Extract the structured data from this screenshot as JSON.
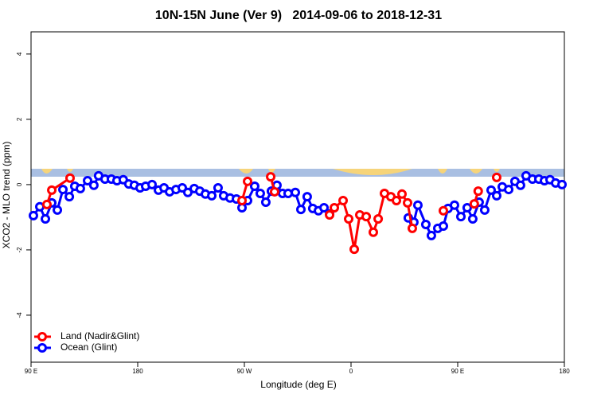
{
  "chart_data": {
    "type": "line",
    "title": "10N-15N June (Ver 9)   2014-09-06 to 2018-12-31",
    "x_label": "Longitude (deg E)",
    "y_label": "XCO2 - MLO trend (ppm)",
    "xlim": [
      90,
      540
    ],
    "xticks": [
      {
        "value": 90,
        "label": "90 E"
      },
      {
        "value": 180,
        "label": "180"
      },
      {
        "value": 270,
        "label": "90 W"
      },
      {
        "value": 360,
        "label": "0"
      },
      {
        "value": 450,
        "label": "90 E"
      },
      {
        "value": 540,
        "label": "180"
      }
    ],
    "ylim": [
      -5.44,
      4.68
    ],
    "yticks": [
      -4,
      -2,
      0,
      2,
      4
    ],
    "legend": "bottom-left",
    "series": [
      {
        "name": "Land (Nadir&Glint)",
        "color": "#ff0000",
        "x": [
          103.4,
          107.5,
          122.9,
          null,
          268.0,
          272.7,
          null,
          292.2,
          295.5,
          null,
          341.9,
          345.9,
          353.3,
          358.0,
          362.7,
          367.4,
          372.8,
          378.8,
          382.9,
          388.2,
          393.6,
          398.3,
          403.0,
          407.7,
          411.7,
          null,
          437.9,
          null,
          464.0,
          467.3,
          null,
          482.9
        ],
        "values": [
          -0.61,
          -0.17,
          0.2,
          null,
          -0.49,
          0.1,
          null,
          0.24,
          -0.22,
          null,
          -0.93,
          -0.71,
          -0.49,
          -1.05,
          -1.98,
          -0.93,
          -0.98,
          -1.46,
          -1.05,
          -0.27,
          -0.37,
          -0.49,
          -0.29,
          -0.56,
          -1.34,
          null,
          -0.8,
          null,
          -0.59,
          -0.2,
          null,
          0.22
        ]
      },
      {
        "name": "Ocean (Glint)",
        "color": "#0000ff",
        "x": [
          92.0,
          97.4,
          102.1,
          107.5,
          112.2,
          116.9,
          122.3,
          126.9,
          131.6,
          137.7,
          143.0,
          147.0,
          152.4,
          157.8,
          162.5,
          167.8,
          172.5,
          177.2,
          182.0,
          186.7,
          192.1,
          197.5,
          202.2,
          206.9,
          212.3,
          217.6,
          222.3,
          227.7,
          232.4,
          237.1,
          242.5,
          247.8,
          252.5,
          257.9,
          263.3,
          268.0,
          272.7,
          278.7,
          283.4,
          288.1,
          292.8,
          297.5,
          302.2,
          306.9,
          313.0,
          317.7,
          323.0,
          327.7,
          332.5,
          337.2,
          341.9,
          null,
          408.3,
          413.0,
          416.4,
          423.1,
          427.8,
          433.2,
          437.9,
          441.9,
          447.3,
          452.7,
          458.0,
          462.7,
          468.1,
          472.8,
          478.2,
          482.9,
          487.6,
          493.0,
          498.3,
          503.0,
          507.7,
          513.1,
          518.5,
          523.2,
          527.9,
          532.6,
          538.0
        ],
        "values": [
          -0.95,
          -0.68,
          -1.05,
          -0.56,
          -0.78,
          -0.15,
          -0.37,
          -0.05,
          -0.12,
          0.12,
          -0.02,
          0.27,
          0.17,
          0.17,
          0.12,
          0.15,
          0.02,
          -0.02,
          -0.1,
          -0.05,
          0,
          -0.17,
          -0.1,
          -0.22,
          -0.15,
          -0.1,
          -0.24,
          -0.12,
          -0.2,
          -0.29,
          -0.34,
          -0.1,
          -0.34,
          -0.41,
          -0.44,
          -0.71,
          -0.49,
          -0.05,
          -0.27,
          -0.54,
          -0.2,
          -0.02,
          -0.27,
          -0.27,
          -0.24,
          -0.76,
          -0.37,
          -0.73,
          -0.8,
          -0.71,
          -0.9,
          null,
          -1.02,
          -1.15,
          -0.63,
          -1.22,
          -1.56,
          -1.34,
          -1.27,
          -0.73,
          -0.63,
          -0.98,
          -0.71,
          -1.05,
          -0.54,
          -0.78,
          -0.17,
          -0.34,
          -0.07,
          -0.15,
          0.1,
          -0.02,
          0.27,
          0.17,
          0.17,
          0.12,
          0.15,
          0.05,
          0
        ]
      }
    ]
  }
}
